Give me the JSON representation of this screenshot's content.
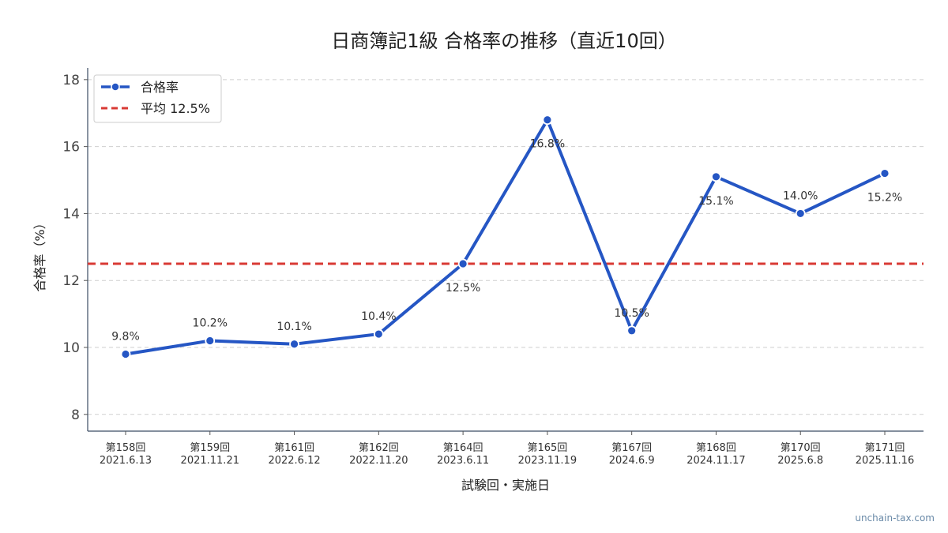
{
  "chart_data": {
    "type": "line",
    "title": "日商簿記1級 合格率の推移（直近10回）",
    "xlabel": "試験回・実施日",
    "ylabel": "合格率（%）",
    "categories": [
      [
        "第158回",
        "2021.6.13"
      ],
      [
        "第159回",
        "2021.11.21"
      ],
      [
        "第161回",
        "2022.6.12"
      ],
      [
        "第162回",
        "2022.11.20"
      ],
      [
        "第164回",
        "2023.6.11"
      ],
      [
        "第165回",
        "2023.11.19"
      ],
      [
        "第167回",
        "2024.6.9"
      ],
      [
        "第168回",
        "2024.11.17"
      ],
      [
        "第170回",
        "2025.6.8"
      ],
      [
        "第171回",
        "2025.11.16"
      ]
    ],
    "series": [
      {
        "name": "合格率",
        "values": [
          9.8,
          10.2,
          10.1,
          10.4,
          12.5,
          16.8,
          10.5,
          15.1,
          14.0,
          15.2
        ],
        "labels": [
          "9.8%",
          "10.2%",
          "10.1%",
          "10.4%",
          "12.5%",
          "16.8%",
          "10.5%",
          "15.1%",
          "14.0%",
          "15.2%"
        ],
        "label_position": [
          "above",
          "above",
          "above",
          "above",
          "below",
          "below",
          "above",
          "below",
          "above",
          "below"
        ],
        "color": "#2556c4"
      }
    ],
    "reference_line": {
      "name": "平均 12.5%",
      "value": 12.5,
      "color": "#d93a34",
      "style": "dashed"
    },
    "ylim": [
      7.5,
      18.35
    ],
    "yticks": [
      8,
      10,
      12,
      14,
      16,
      18
    ],
    "grid": "horizontal dashed",
    "legend": "top-left",
    "watermark": "unchain-tax.com"
  }
}
